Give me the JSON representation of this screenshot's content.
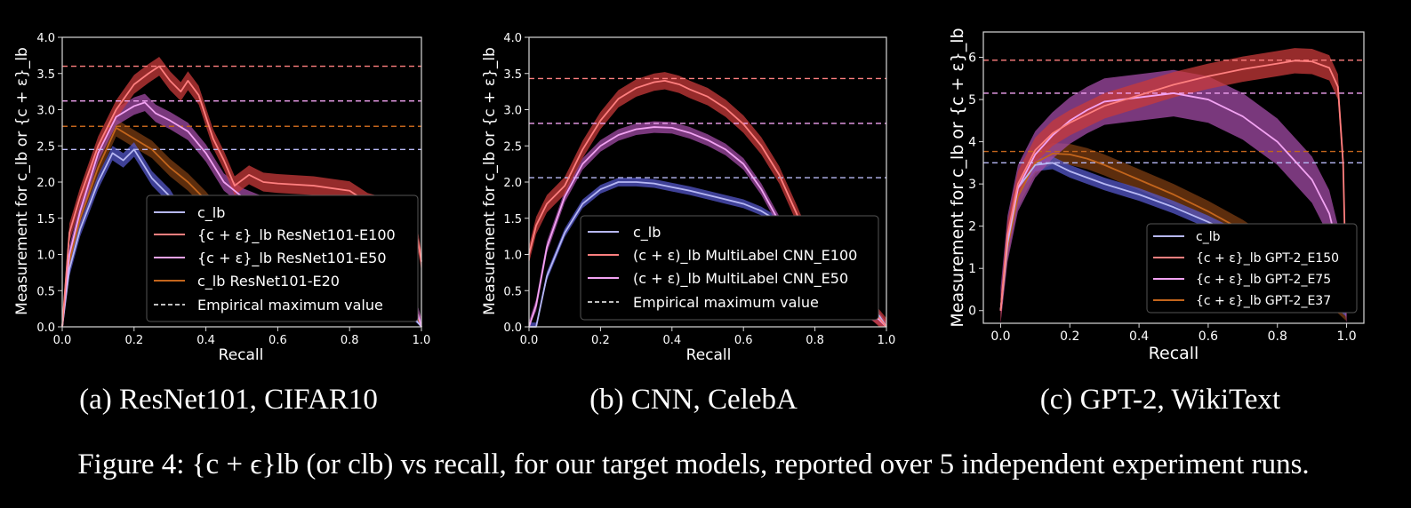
{
  "figure": {
    "caption": "Figure 4: {c + ϵ}lb (or clb) vs recall, for our target models, reported over 5 independent experiment runs."
  },
  "colors": {
    "background": "#000000",
    "axes": "#d8d8d8",
    "blue": "#b7b8f4",
    "red": "#ff7f7f",
    "pink": "#f2a3f2",
    "orange": "#c3651c",
    "blue_band": "#5457c9",
    "red_band": "#c83a3a",
    "pink_band": "#a24ba6",
    "orange_band": "#7b3c12"
  },
  "chart_data": [
    {
      "type": "line",
      "subcaption": "(a) ResNet101, CIFAR10",
      "xlabel": "Recall",
      "ylabel": "Measurement for c_lb or {c + ε}_lb",
      "xlim": [
        0,
        1
      ],
      "ylim": [
        0,
        4
      ],
      "xticks": [
        "0.0",
        "0.2",
        "0.4",
        "0.6",
        "0.8",
        "1.0"
      ],
      "yticks": [
        "0.0",
        "0.5",
        "1.0",
        "1.5",
        "2.0",
        "2.5",
        "3.0",
        "3.5",
        "4.0"
      ],
      "legend_position": "lower-right",
      "legend": [
        "c_lb",
        "{c + ε}_lb ResNet101-E100",
        "{c + ε}_lb ResNet101-E50",
        "c_lb ResNet101-E20",
        "Empirical maximum value"
      ],
      "hlines": [
        {
          "color": "red",
          "y": 3.6
        },
        {
          "color": "pink",
          "y": 3.12
        },
        {
          "color": "orange",
          "y": 2.77
        },
        {
          "color": "blue",
          "y": 2.45
        }
      ],
      "series": [
        {
          "color": "orange",
          "band": 0.12,
          "x": [
            0,
            0.02,
            0.05,
            0.1,
            0.15,
            0.2,
            0.25,
            0.3,
            0.35,
            0.4,
            0.45,
            0.5,
            0.6,
            0.7,
            0.8,
            0.9,
            0.95,
            1.0
          ],
          "y": [
            0,
            0.9,
            1.5,
            2.2,
            2.75,
            2.6,
            2.45,
            2.2,
            2.0,
            1.75,
            1.45,
            1.3,
            1.15,
            0.95,
            0.8,
            0.7,
            0.6,
            0
          ]
        },
        {
          "color": "blue",
          "band": 0.1,
          "x": [
            0,
            0.02,
            0.05,
            0.1,
            0.14,
            0.17,
            0.2,
            0.25,
            0.3,
            0.35,
            0.4,
            0.5,
            0.6,
            0.7,
            0.8,
            0.9,
            0.95,
            1.0
          ],
          "y": [
            0,
            0.8,
            1.35,
            2.0,
            2.4,
            2.3,
            2.45,
            2.05,
            1.8,
            1.4,
            1.1,
            0.85,
            0.7,
            0.55,
            0.45,
            0.35,
            0.3,
            0
          ]
        },
        {
          "color": "pink",
          "band": 0.12,
          "x": [
            0,
            0.02,
            0.05,
            0.1,
            0.15,
            0.2,
            0.23,
            0.26,
            0.3,
            0.35,
            0.4,
            0.45,
            0.5,
            0.6,
            0.7,
            0.8,
            0.9,
            0.95,
            1.0
          ],
          "y": [
            0,
            1.0,
            1.6,
            2.4,
            2.9,
            3.05,
            3.1,
            2.95,
            2.85,
            2.7,
            2.4,
            2.0,
            1.8,
            1.6,
            1.45,
            1.3,
            1.05,
            0.85,
            0
          ]
        },
        {
          "color": "red",
          "band": 0.13,
          "x": [
            0,
            0.02,
            0.05,
            0.1,
            0.15,
            0.2,
            0.24,
            0.27,
            0.3,
            0.33,
            0.35,
            0.38,
            0.42,
            0.45,
            0.48,
            0.52,
            0.56,
            0.6,
            0.7,
            0.8,
            0.85,
            0.9,
            0.95,
            0.98,
            1.0
          ],
          "y": [
            0,
            1.3,
            1.8,
            2.5,
            3.0,
            3.35,
            3.5,
            3.6,
            3.4,
            3.25,
            3.4,
            3.2,
            2.6,
            2.3,
            1.95,
            2.1,
            2.0,
            1.98,
            1.95,
            1.88,
            1.72,
            1.65,
            1.58,
            1.5,
            0.9
          ]
        }
      ]
    },
    {
      "type": "line",
      "subcaption": "(b) CNN, CelebA",
      "xlabel": "Recall",
      "ylabel": "Measurement for c_lb or {c + ε}_lb",
      "xlim": [
        0,
        1
      ],
      "ylim": [
        0,
        4
      ],
      "xticks": [
        "0.0",
        "0.2",
        "0.4",
        "0.6",
        "0.8",
        "1.0"
      ],
      "yticks": [
        "0.0",
        "0.5",
        "1.0",
        "1.5",
        "2.0",
        "2.5",
        "3.0",
        "3.5",
        "4.0"
      ],
      "legend_position": "lower-center",
      "legend": [
        "c_lb",
        "(c + ε)_lb MultiLabel CNN_E100",
        "(c + ε)_lb  MultiLabel CNN_E50",
        "Empirical maximum value"
      ],
      "hlines": [
        {
          "color": "red",
          "y": 3.43
        },
        {
          "color": "pink",
          "y": 2.81
        },
        {
          "color": "blue",
          "y": 2.06
        }
      ],
      "series": [
        {
          "color": "blue",
          "band": 0.06,
          "x": [
            0,
            0.02,
            0.05,
            0.1,
            0.15,
            0.2,
            0.25,
            0.3,
            0.35,
            0.4,
            0.45,
            0.5,
            0.55,
            0.6,
            0.65,
            0.7,
            0.75,
            0.8,
            0.85,
            0.9,
            0.95,
            0.98,
            1.0
          ],
          "y": [
            0,
            0,
            0.7,
            1.3,
            1.7,
            1.9,
            2.0,
            2.0,
            1.98,
            1.93,
            1.88,
            1.82,
            1.76,
            1.7,
            1.6,
            1.45,
            1.25,
            1.0,
            0.75,
            0.5,
            0.3,
            0.15,
            0
          ]
        },
        {
          "color": "pink",
          "band": 0.08,
          "x": [
            0,
            0.02,
            0.05,
            0.1,
            0.15,
            0.2,
            0.25,
            0.3,
            0.35,
            0.4,
            0.45,
            0.5,
            0.55,
            0.6,
            0.65,
            0.7,
            0.75,
            0.8,
            0.85,
            0.9,
            0.95,
            0.98,
            1.0
          ],
          "y": [
            0,
            0.3,
            1.1,
            1.8,
            2.25,
            2.5,
            2.65,
            2.73,
            2.76,
            2.75,
            2.68,
            2.58,
            2.45,
            2.25,
            1.9,
            1.45,
            1.15,
            0.9,
            0.65,
            0.4,
            0.2,
            0.1,
            0
          ]
        },
        {
          "color": "red",
          "band": 0.12,
          "x": [
            0,
            0.02,
            0.05,
            0.1,
            0.15,
            0.2,
            0.25,
            0.3,
            0.35,
            0.38,
            0.42,
            0.45,
            0.5,
            0.55,
            0.6,
            0.65,
            0.7,
            0.75,
            0.78,
            0.82,
            0.88,
            0.94,
            0.98,
            1.0
          ],
          "y": [
            1.0,
            1.4,
            1.7,
            1.95,
            2.45,
            2.85,
            3.15,
            3.3,
            3.38,
            3.4,
            3.35,
            3.28,
            3.18,
            3.02,
            2.8,
            2.5,
            2.1,
            1.55,
            1.2,
            0.9,
            0.6,
            0.3,
            0.12,
            0
          ]
        }
      ]
    },
    {
      "type": "line",
      "subcaption": "(c) GPT-2, WikiText",
      "xlabel": "Recall",
      "ylabel": "Measurement for c_lb or {c + ε}_lb",
      "xlim": [
        -0.05,
        1.05
      ],
      "ylim": [
        -0.3,
        6.6
      ],
      "xticks": [
        "0.0",
        "0.2",
        "0.4",
        "0.6",
        "0.8",
        "1.0"
      ],
      "yticks": [
        "0",
        "1",
        "2",
        "3",
        "4",
        "5",
        "6"
      ],
      "legend_position": "lower-right",
      "legend": [
        "c_lb",
        "{c + ε}_lb GPT-2_E150",
        "{c + ε}_lb GPT-2_E75",
        "{c + ε}_lb GPT-2_E37"
      ],
      "hlines": [
        {
          "color": "red",
          "y": 5.93
        },
        {
          "color": "pink",
          "y": 5.15
        },
        {
          "color": "orange",
          "y": 3.77
        },
        {
          "color": "blue",
          "y": 3.5
        }
      ],
      "series": [
        {
          "color": "orange",
          "band": 0.25,
          "x": [
            0,
            0.02,
            0.05,
            0.1,
            0.15,
            0.2,
            0.25,
            0.3,
            0.4,
            0.5,
            0.6,
            0.7,
            0.8,
            0.9,
            1.0
          ],
          "y": [
            0,
            1.5,
            2.7,
            3.5,
            3.72,
            3.7,
            3.6,
            3.45,
            3.1,
            2.75,
            2.35,
            1.9,
            1.35,
            0.75,
            0
          ]
        },
        {
          "color": "blue",
          "band": 0.15,
          "x": [
            0,
            0.02,
            0.05,
            0.1,
            0.15,
            0.2,
            0.3,
            0.4,
            0.5,
            0.6,
            0.7,
            0.8,
            0.9,
            1.0
          ],
          "y": [
            0,
            1.6,
            2.9,
            3.45,
            3.5,
            3.3,
            3.0,
            2.75,
            2.45,
            2.1,
            1.7,
            1.25,
            0.7,
            0
          ]
        },
        {
          "color": "pink",
          "band": 0.55,
          "x": [
            0,
            0.02,
            0.05,
            0.1,
            0.15,
            0.2,
            0.25,
            0.3,
            0.4,
            0.5,
            0.6,
            0.7,
            0.8,
            0.9,
            0.95,
            0.98,
            1.0
          ],
          "y": [
            0,
            1.7,
            2.9,
            3.7,
            4.15,
            4.5,
            4.75,
            4.95,
            5.05,
            5.15,
            5.0,
            4.6,
            4.0,
            3.1,
            2.3,
            1.3,
            0
          ]
        },
        {
          "color": "red",
          "band": 0.3,
          "x": [
            0,
            0.02,
            0.05,
            0.1,
            0.15,
            0.2,
            0.3,
            0.4,
            0.5,
            0.6,
            0.7,
            0.8,
            0.85,
            0.9,
            0.95,
            0.975,
            0.99,
            1.0
          ],
          "y": [
            0,
            1.8,
            3.0,
            3.8,
            4.2,
            4.45,
            4.85,
            5.1,
            5.35,
            5.55,
            5.72,
            5.85,
            5.92,
            5.9,
            5.75,
            5.3,
            3.5,
            0
          ]
        }
      ]
    }
  ]
}
